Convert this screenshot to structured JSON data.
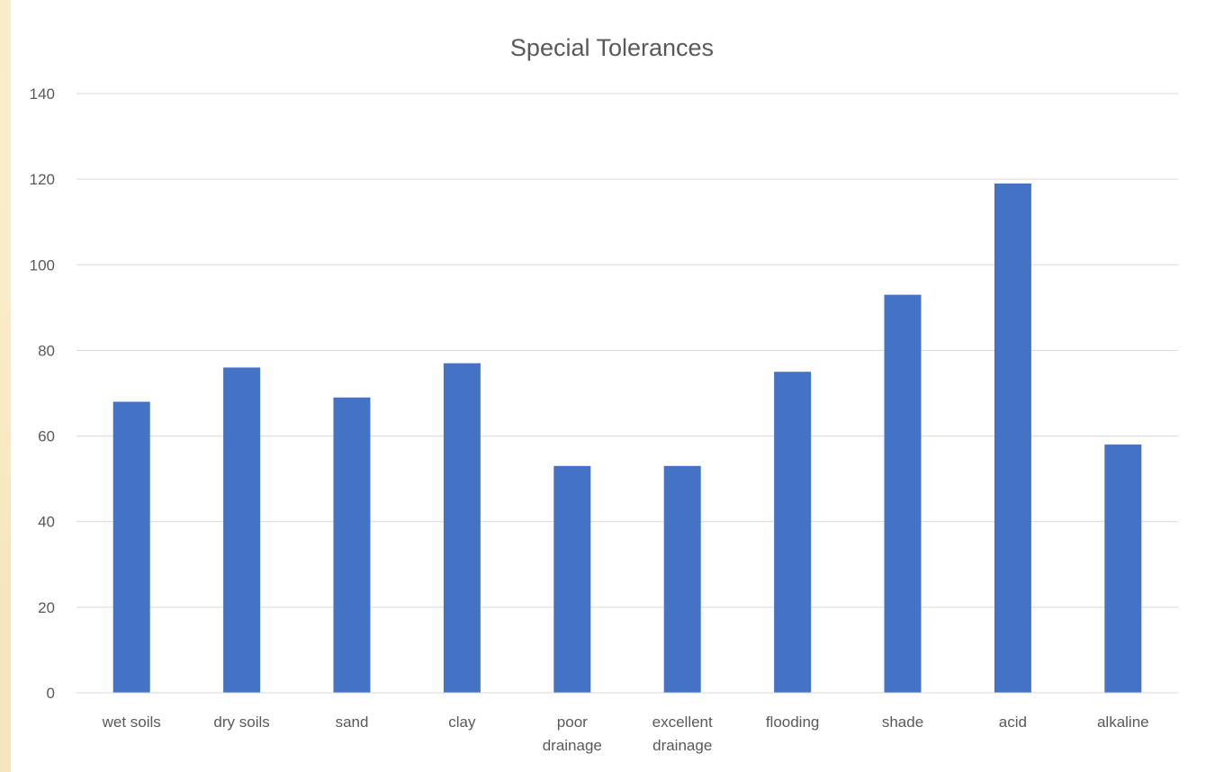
{
  "chart_data": {
    "type": "bar",
    "title": "Special Tolerances",
    "xlabel": "",
    "ylabel": "",
    "categories": [
      "wet soils",
      "dry soils",
      "sand",
      "clay",
      "poor drainage",
      "excellent drainage",
      "flooding",
      "shade",
      "acid",
      "alkaline"
    ],
    "category_lines": [
      [
        "wet soils"
      ],
      [
        "dry soils"
      ],
      [
        "sand"
      ],
      [
        "clay"
      ],
      [
        "poor",
        "drainage"
      ],
      [
        "excellent",
        "drainage"
      ],
      [
        "flooding"
      ],
      [
        "shade"
      ],
      [
        "acid"
      ],
      [
        "alkaline"
      ]
    ],
    "values": [
      68,
      76,
      69,
      77,
      53,
      53,
      75,
      93,
      119,
      58
    ],
    "ylim": [
      0,
      140
    ],
    "yticks": [
      0,
      20,
      40,
      60,
      80,
      100,
      120,
      140
    ],
    "grid": true,
    "legend": "none",
    "bar_color": "#4472c4"
  }
}
